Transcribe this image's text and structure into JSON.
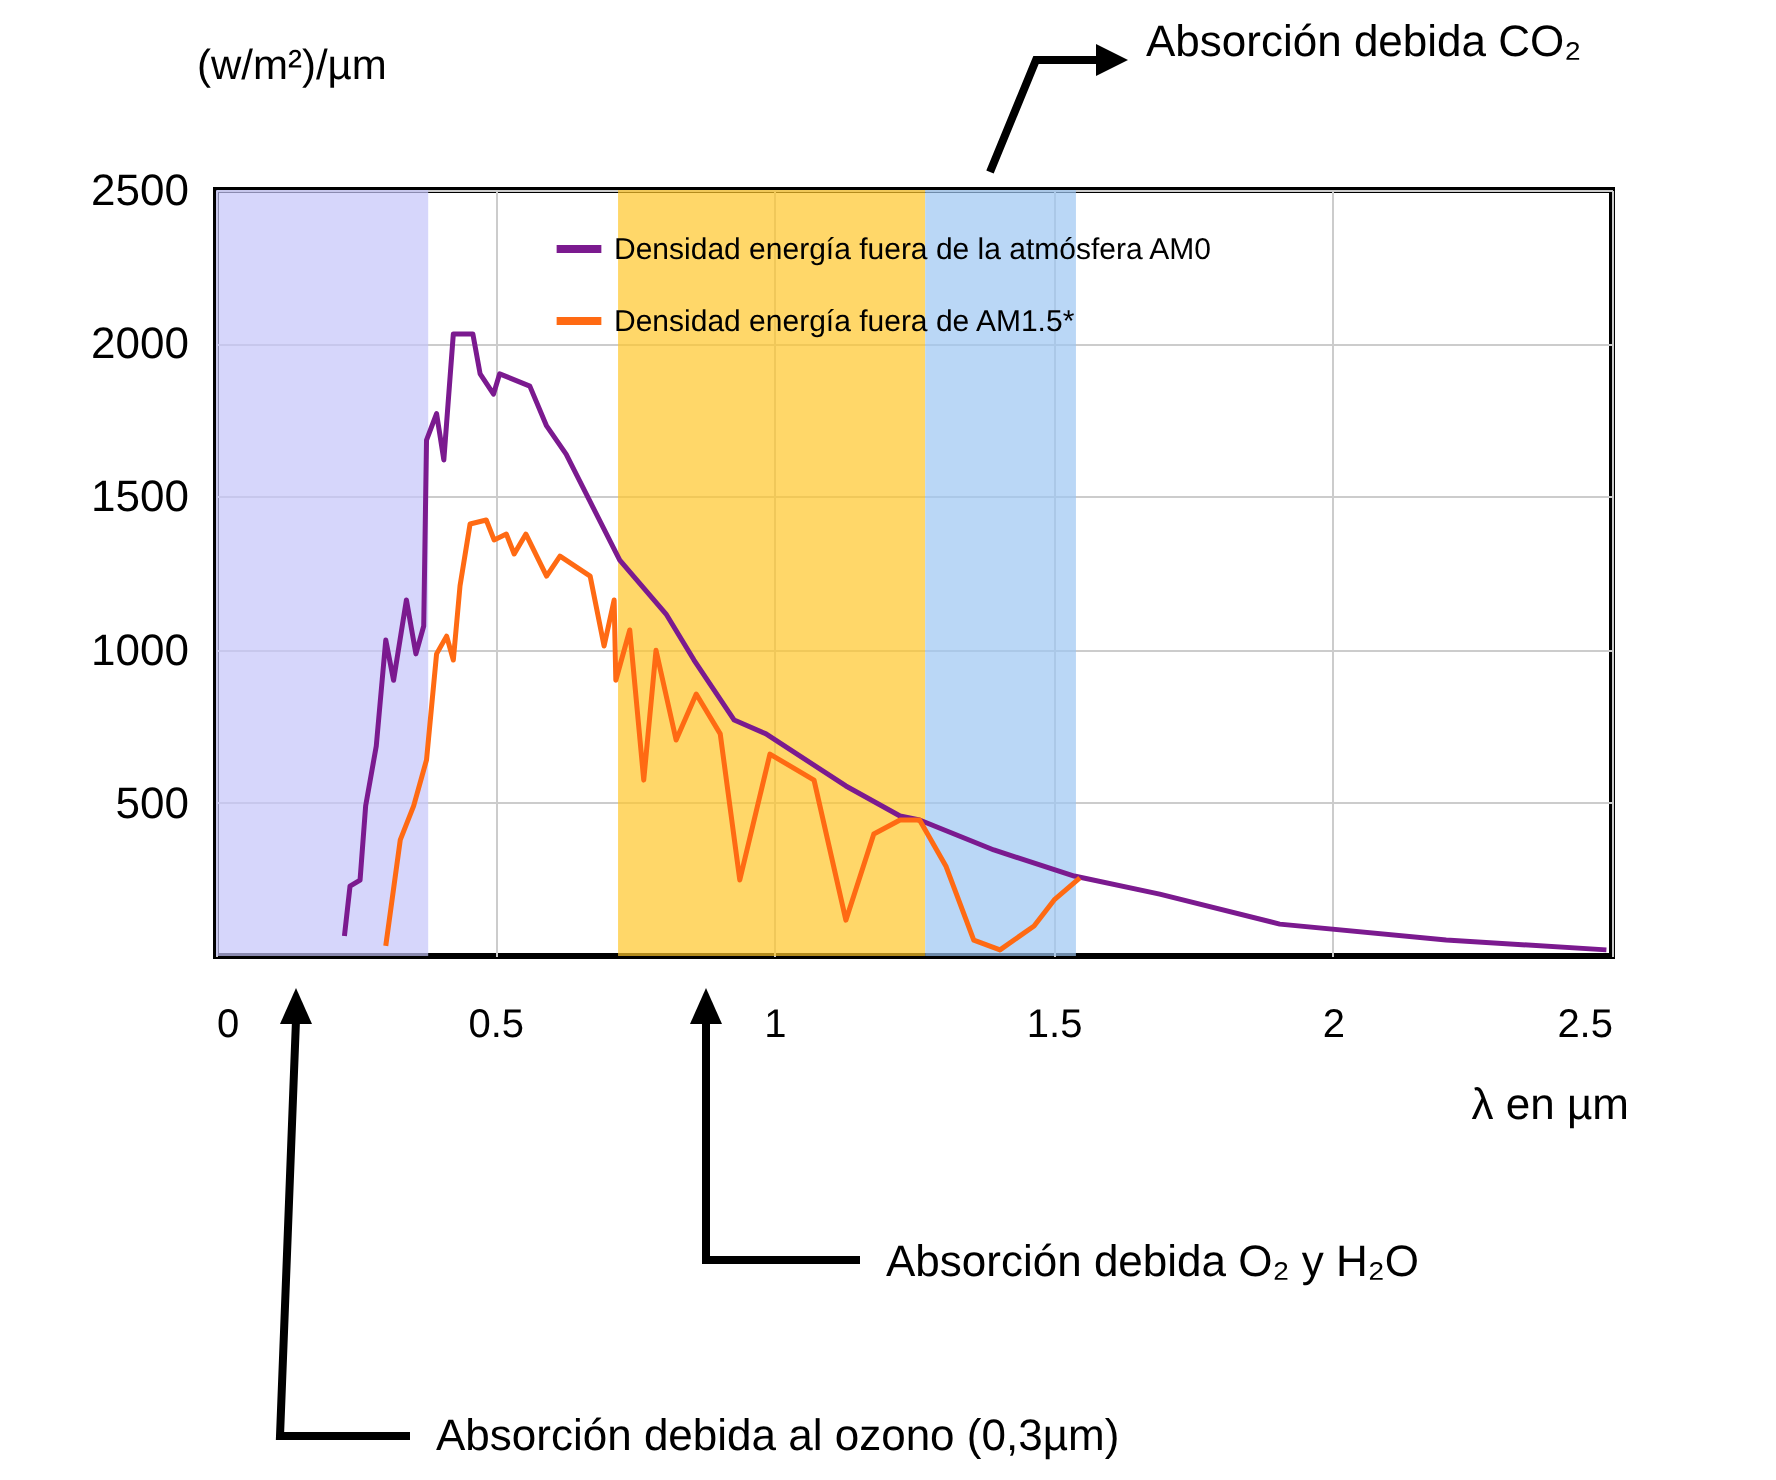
{
  "chart_data": {
    "type": "line",
    "xlabel": "λ en µm",
    "ylabel": "(w/m²)/µm",
    "xlim": [
      0,
      2.5
    ],
    "xticks": [
      0,
      0.5,
      1,
      1.5,
      2,
      2.5
    ],
    "ylim": [
      0,
      2500
    ],
    "yticks": [
      500,
      1000,
      1500,
      2000,
      2500
    ],
    "grid": true,
    "legend": "top right",
    "line_style": "solid",
    "marker": "none",
    "series": [
      {
        "name": "Densidad energía fuera de la atmósfera AM0",
        "color": "#7b1a8f",
        "x": [
          0.23,
          0.24,
          0.258,
          0.268,
          0.287,
          0.304,
          0.318,
          0.341,
          0.358,
          0.372,
          0.377,
          0.395,
          0.408,
          0.425,
          0.46,
          0.473,
          0.497,
          0.508,
          0.562,
          0.592,
          0.627,
          0.663,
          0.723,
          0.806,
          0.856,
          0.928,
          0.985,
          1.128,
          1.225,
          1.26,
          1.393,
          1.537,
          1.69,
          1.905,
          2.203,
          2.49
        ],
        "values": [
          65,
          228,
          248,
          490,
          685,
          1031,
          900,
          1162,
          986,
          1077,
          1684,
          1770,
          1619,
          2030,
          2030,
          1900,
          1834,
          1900,
          1860,
          1730,
          1638,
          1508,
          1292,
          1116,
          966,
          770,
          725,
          555,
          457,
          444,
          346,
          261,
          202,
          104,
          52,
          20
        ]
      },
      {
        "name": "Densidad energía fuera de AM1.5*",
        "color": "#ff6a13",
        "x": [
          0.304,
          0.33,
          0.354,
          0.377,
          0.395,
          0.413,
          0.425,
          0.437,
          0.455,
          0.484,
          0.498,
          0.52,
          0.534,
          0.555,
          0.592,
          0.616,
          0.67,
          0.695,
          0.713,
          0.716,
          0.741,
          0.766,
          0.788,
          0.824,
          0.86,
          0.903,
          0.938,
          0.992,
          1.071,
          1.128,
          1.178,
          1.225,
          1.26,
          1.307,
          1.357,
          1.404,
          1.465,
          1.501,
          1.547
        ],
        "values": [
          33,
          379,
          490,
          640,
          986,
          1044,
          966,
          1208,
          1410,
          1423,
          1358,
          1377,
          1312,
          1377,
          1240,
          1305,
          1240,
          1012,
          1162,
          900,
          1064,
          574,
          998,
          705,
          855,
          725,
          248,
          659,
          574,
          117,
          398,
          444,
          444,
          294,
          52,
          20,
          98,
          183,
          255
        ]
      }
    ],
    "bands": [
      {
        "axis": "x",
        "from": 0,
        "to": 0.38,
        "color": "#c5c5fa"
      },
      {
        "axis": "x",
        "from": 0.72,
        "to": 1.27,
        "color": "#ffc62a"
      },
      {
        "axis": "x",
        "from": 1.27,
        "to": 1.54,
        "color": "#9cc6f2"
      }
    ],
    "annotations": [
      "Absorción debida CO₂",
      "Absorción debida O₂ y H₂O",
      "Absorción debida al ozono (0,3µm)"
    ]
  }
}
